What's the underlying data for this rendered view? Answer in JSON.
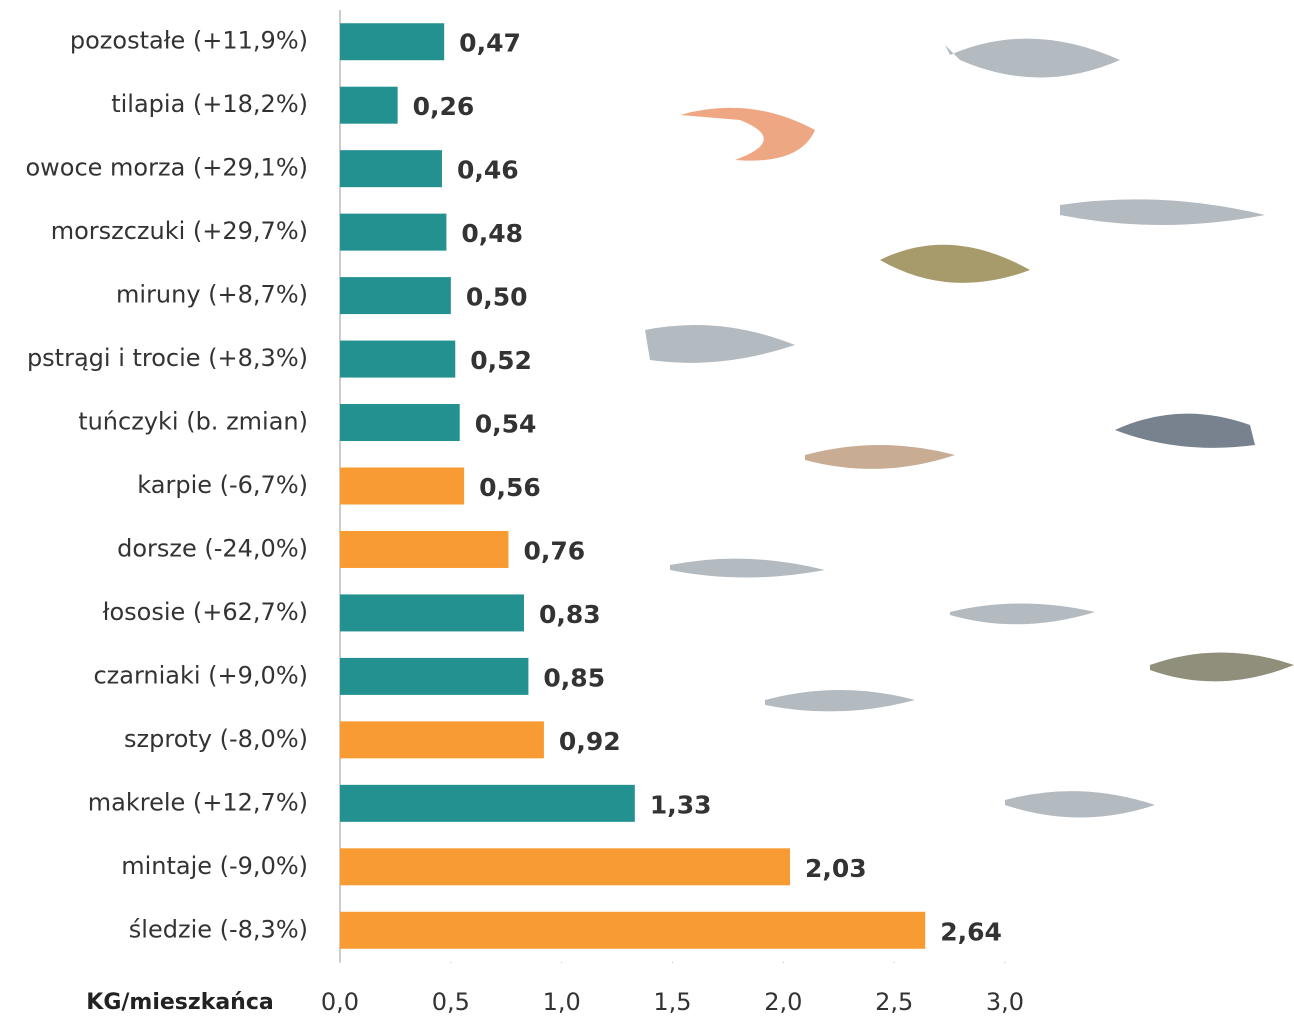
{
  "chart_data": {
    "type": "barh",
    "x_label": "KG/mieszkańca",
    "categories": [
      "pozostałe (+11,9%)",
      "tilapia (+18,2%)",
      "owoce morza (+29,1%)",
      "morszczuki (+29,7%)",
      "miruny (+8,7%)",
      "pstrągi i trocie (+8,3%)",
      "tuńczyki (b. zmian)",
      "karpie (-6,7%)",
      "dorsze (-24,0%)",
      "łososie (+62,7%)",
      "czarniaki (+9,0%)",
      "szproty (-8,0%)",
      "makrele (+12,7%)",
      "mintaje (-9,0%)",
      "śledzie (-8,3%)"
    ],
    "values": [
      0.47,
      0.26,
      0.46,
      0.48,
      0.5,
      0.52,
      0.54,
      0.56,
      0.76,
      0.83,
      0.85,
      0.92,
      1.33,
      2.03,
      2.64
    ],
    "value_labels": [
      "0,47",
      "0,26",
      "0,46",
      "0,48",
      "0,50",
      "0,52",
      "0,54",
      "0,56",
      "0,76",
      "0,83",
      "0,85",
      "0,92",
      "1,33",
      "2,03",
      "2,64"
    ],
    "colors": [
      "#239190",
      "#239190",
      "#239190",
      "#239190",
      "#239190",
      "#239190",
      "#239190",
      "#f99b33",
      "#f99b33",
      "#239190",
      "#239190",
      "#f99b33",
      "#239190",
      "#f99b33",
      "#f99b33"
    ],
    "xlim": [
      0,
      3
    ],
    "xticks": [
      {
        "value": 0,
        "label": "0,0"
      },
      {
        "value": 0.5,
        "label": "0,5"
      },
      {
        "value": 1,
        "label": "1,0"
      },
      {
        "value": 1.5,
        "label": "1,5"
      },
      {
        "value": 2,
        "label": "2,0"
      },
      {
        "value": 2.5,
        "label": "2,5"
      },
      {
        "value": 3,
        "label": "3,0"
      }
    ]
  }
}
